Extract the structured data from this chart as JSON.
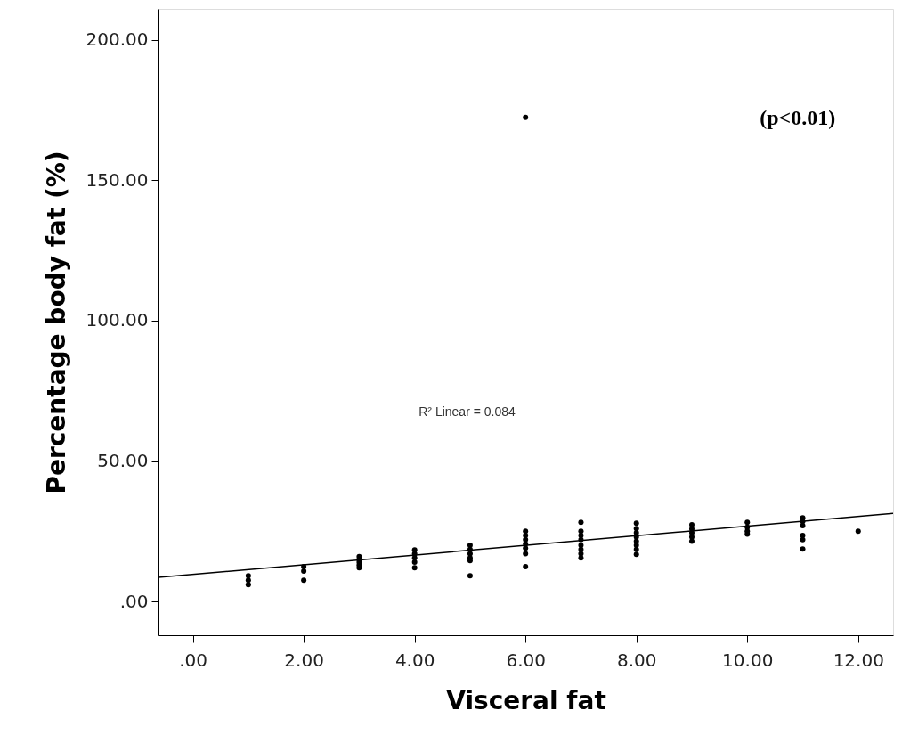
{
  "chart_data": {
    "type": "scatter",
    "xlabel": "Visceral fat",
    "ylabel": "Percentage body fat (%)",
    "xlim": [
      -0.62,
      12.63
    ],
    "ylim": [
      -12,
      211
    ],
    "xticks": [
      {
        "value": 0,
        "label": ".00"
      },
      {
        "value": 2,
        "label": "2.00"
      },
      {
        "value": 4,
        "label": "4.00"
      },
      {
        "value": 6,
        "label": "6.00"
      },
      {
        "value": 8,
        "label": "8.00"
      },
      {
        "value": 10,
        "label": "10.00"
      },
      {
        "value": 12,
        "label": "12.00"
      }
    ],
    "yticks": [
      {
        "value": 0,
        "label": ".00"
      },
      {
        "value": 50,
        "label": "50.00"
      },
      {
        "value": 100,
        "label": "100.00"
      },
      {
        "value": 150,
        "label": "150.00"
      },
      {
        "value": 200,
        "label": "200.00"
      }
    ],
    "grid": false,
    "annotations": [
      "(p<0.01)",
      "R² Linear = 0.084"
    ],
    "series": [
      {
        "type": "scatter",
        "color": "#000000",
        "marker": "circle",
        "x": [
          1,
          1,
          1,
          2,
          2,
          2,
          3,
          3,
          3,
          3,
          3,
          4,
          4,
          4,
          4,
          4,
          5,
          5,
          5,
          5,
          5,
          5,
          6,
          6,
          6,
          6,
          6,
          6,
          6,
          6,
          7,
          7,
          7,
          7,
          7,
          7,
          7,
          7,
          8,
          8,
          8,
          8,
          8,
          8,
          8,
          8,
          9,
          9,
          9,
          9,
          9,
          10,
          10,
          10,
          10,
          11,
          11,
          11,
          11,
          11,
          11,
          12
        ],
        "values": [
          9.2,
          7.6,
          6.0,
          12.4,
          10.8,
          7.6,
          16,
          15,
          14,
          13,
          12,
          18.4,
          17,
          15.5,
          14,
          12,
          20,
          18.5,
          17,
          15.5,
          14.6,
          9.2,
          25,
          23.5,
          22,
          20.5,
          19,
          17,
          12.4,
          172.4,
          28.2,
          25,
          23.5,
          22,
          20,
          18.5,
          17,
          15.5,
          27.9,
          26,
          24.5,
          23,
          21.5,
          20,
          18.5,
          16.8,
          27.3,
          25.8,
          24.5,
          23,
          21.5,
          28.2,
          26.5,
          25,
          24,
          29.8,
          28.5,
          27,
          23.5,
          22,
          18.7,
          25
        ]
      },
      {
        "type": "line",
        "color": "#000000",
        "x": [
          -0.62,
          12.63
        ],
        "values": [
          8.6,
          31.4
        ]
      }
    ]
  }
}
